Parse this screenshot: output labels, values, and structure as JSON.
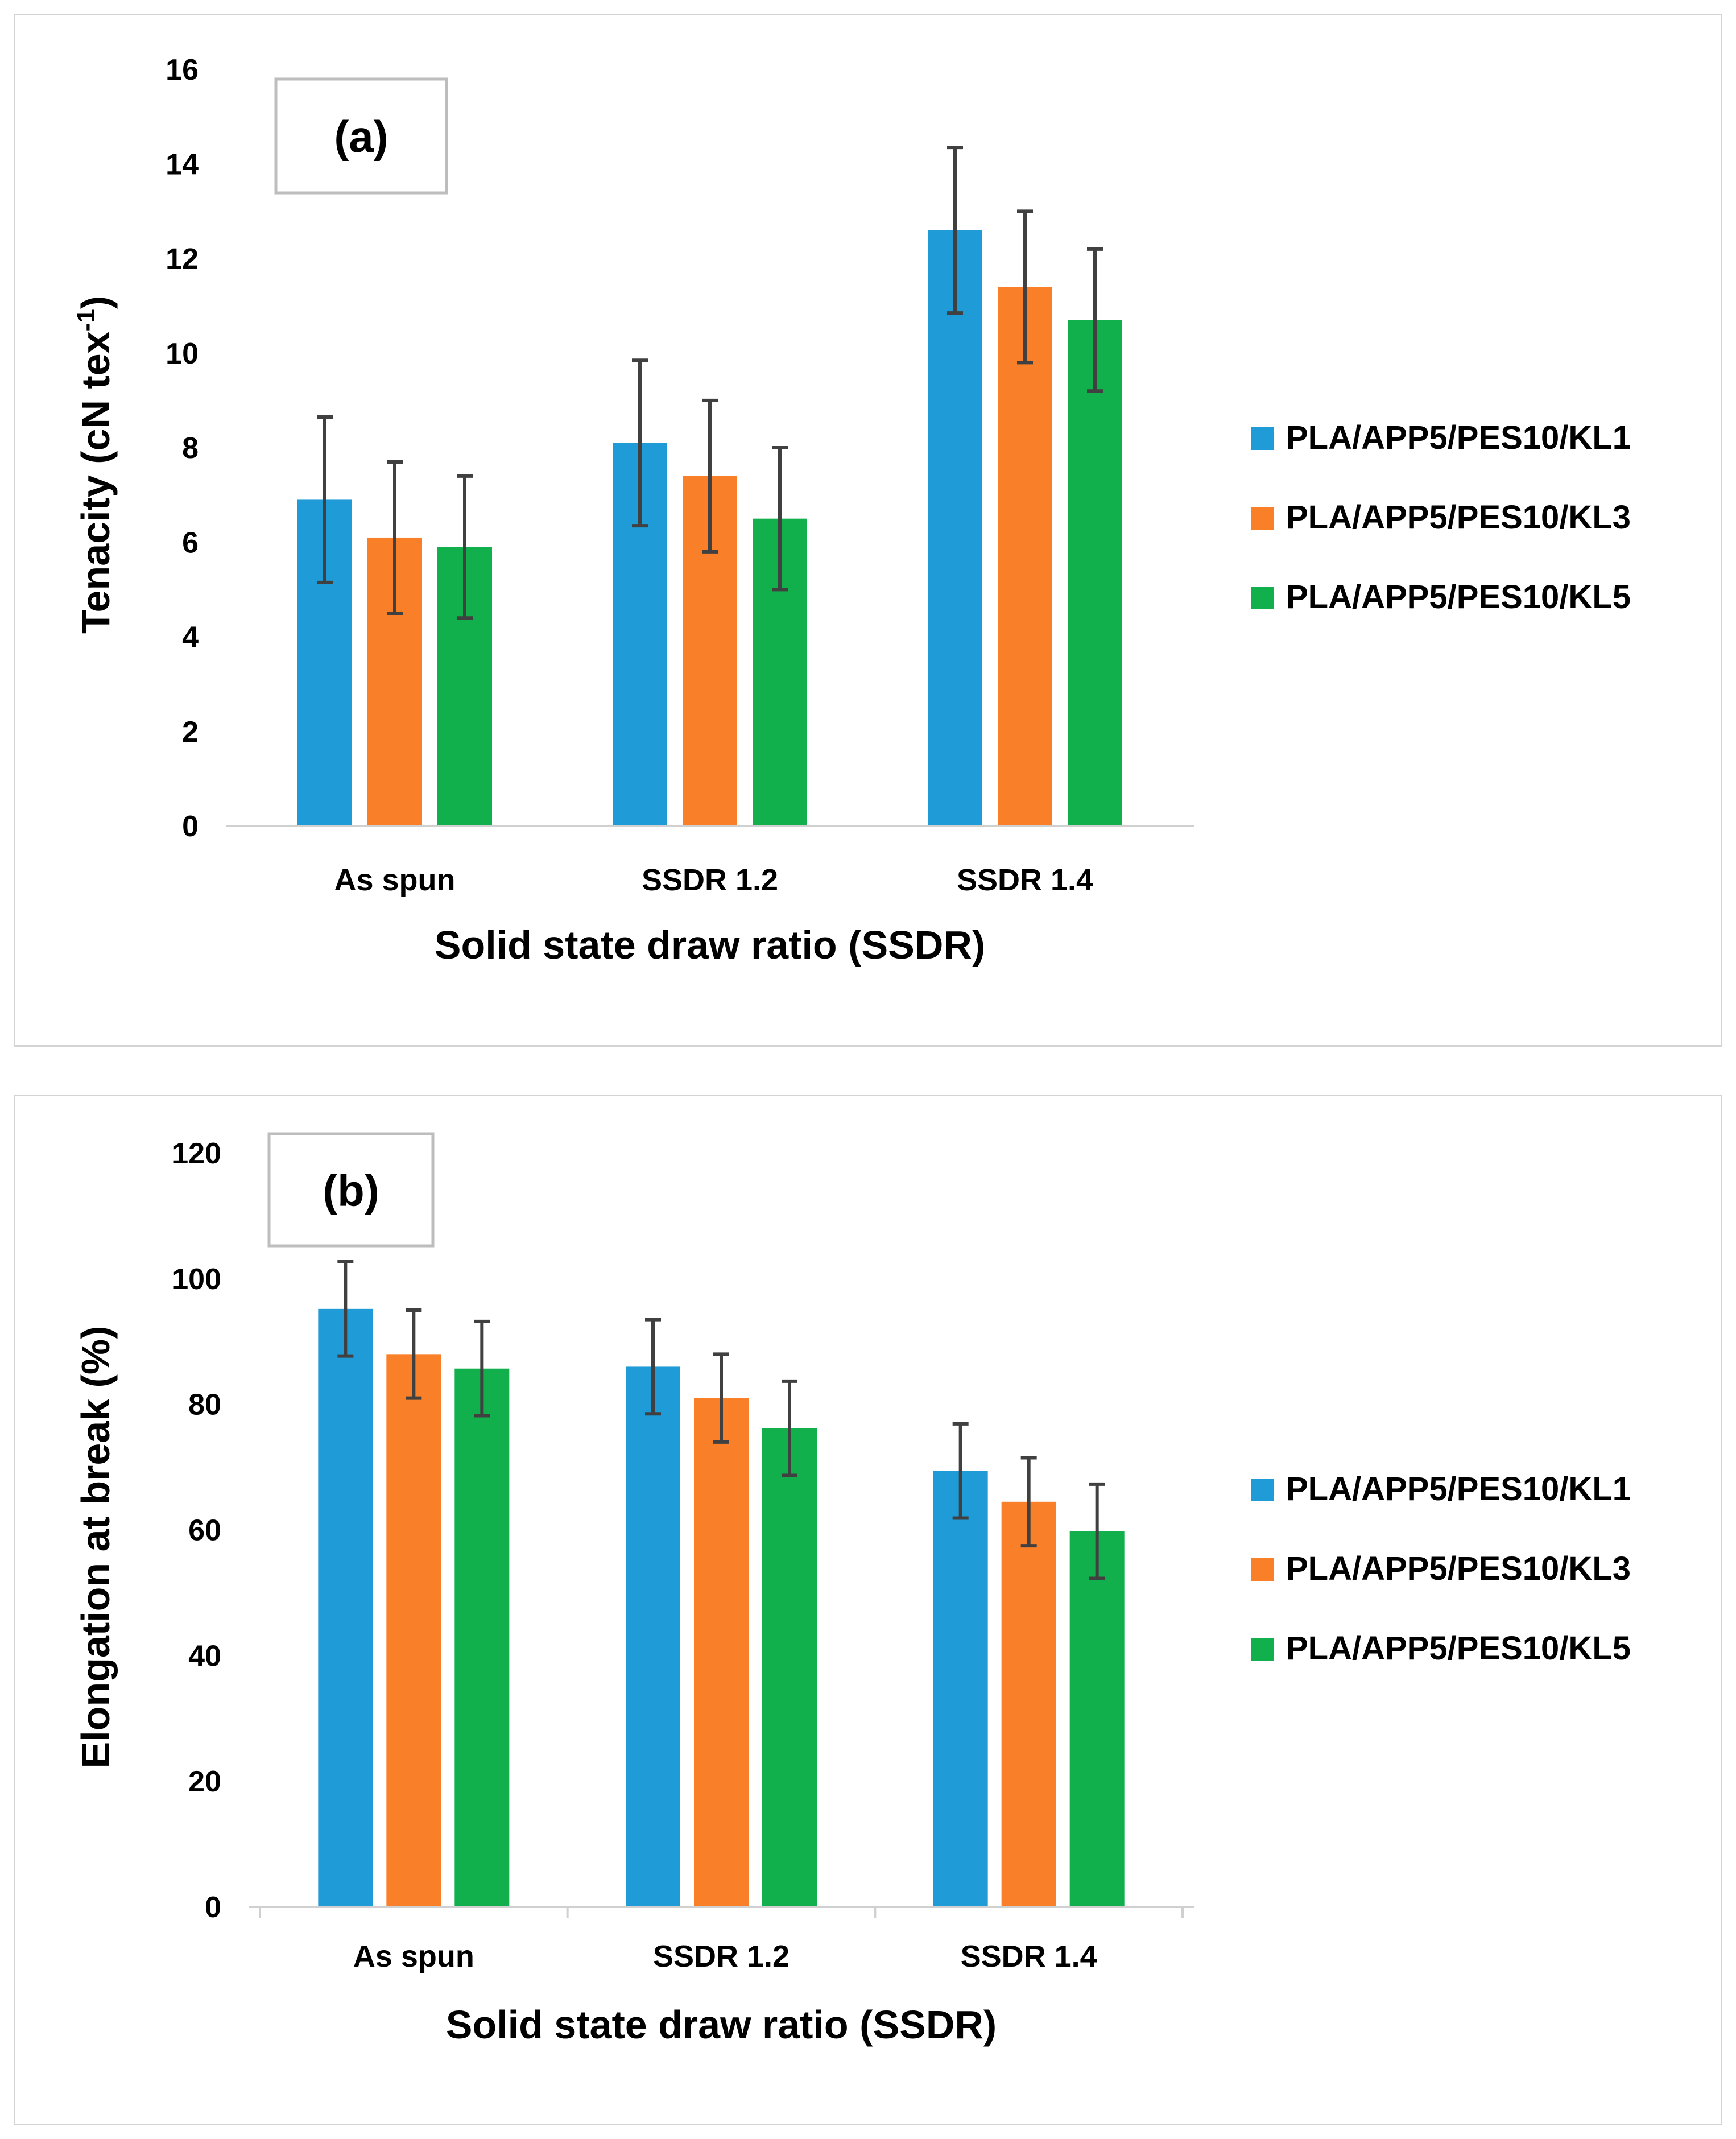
{
  "chart_data": [
    {
      "type": "bar",
      "panel_label": "(a)",
      "title": "",
      "xlabel": "Solid state draw ratio (SSDR)",
      "ylabel_main": "Tenacity (cN tex",
      "ylabel_sup": "-1",
      "ylabel_end": ")",
      "ylim": [
        0,
        16
      ],
      "yticks": [
        "0",
        "2",
        "4",
        "6",
        "8",
        "10",
        "12",
        "14",
        "16"
      ],
      "ytick_values": [
        0,
        2,
        4,
        6,
        8,
        10,
        12,
        14,
        16
      ],
      "grid": false,
      "legend_position": "right",
      "categories": [
        "As spun",
        "SSDR 1.2",
        "SSDR 1.4"
      ],
      "series": [
        {
          "name": "PLA/APP5/PES10/KL1",
          "color": "#1f9bd7",
          "values": [
            6.9,
            8.1,
            12.6
          ],
          "errors": [
            1.75,
            1.75,
            1.75
          ]
        },
        {
          "name": "PLA/APP5/PES10/KL3",
          "color": "#f97f28",
          "values": [
            6.1,
            7.4,
            11.4
          ],
          "errors": [
            1.6,
            1.6,
            1.6
          ]
        },
        {
          "name": "PLA/APP5/PES10/KL5",
          "color": "#12b04c",
          "values": [
            5.9,
            6.5,
            10.7
          ],
          "errors": [
            1.5,
            1.5,
            1.5
          ]
        }
      ]
    },
    {
      "type": "bar",
      "panel_label": "(b)",
      "title": "",
      "xlabel": "Solid state draw ratio (SSDR)",
      "ylabel_main": "Elongation at break (%)",
      "ylabel_sup": "",
      "ylabel_end": "",
      "ylim": [
        0,
        120
      ],
      "yticks": [
        "0",
        "20",
        "40",
        "60",
        "80",
        "100",
        "120"
      ],
      "ytick_values": [
        0,
        20,
        40,
        60,
        80,
        100,
        120
      ],
      "grid": false,
      "legend_position": "right",
      "categories": [
        "As spun",
        "SSDR 1.2",
        "SSDR 1.4"
      ],
      "series": [
        {
          "name": "PLA/APP5/PES10/KL1",
          "color": "#1f9bd7",
          "values": [
            95.2,
            86.0,
            69.4
          ],
          "errors": [
            7.5,
            7.5,
            7.5
          ]
        },
        {
          "name": "PLA/APP5/PES10/KL3",
          "color": "#f97f28",
          "values": [
            88.0,
            81.0,
            64.5
          ],
          "errors": [
            7.0,
            7.0,
            7.0
          ]
        },
        {
          "name": "PLA/APP5/PES10/KL5",
          "color": "#12b04c",
          "values": [
            85.7,
            76.2,
            59.8
          ],
          "errors": [
            7.5,
            7.5,
            7.5
          ]
        }
      ]
    }
  ]
}
